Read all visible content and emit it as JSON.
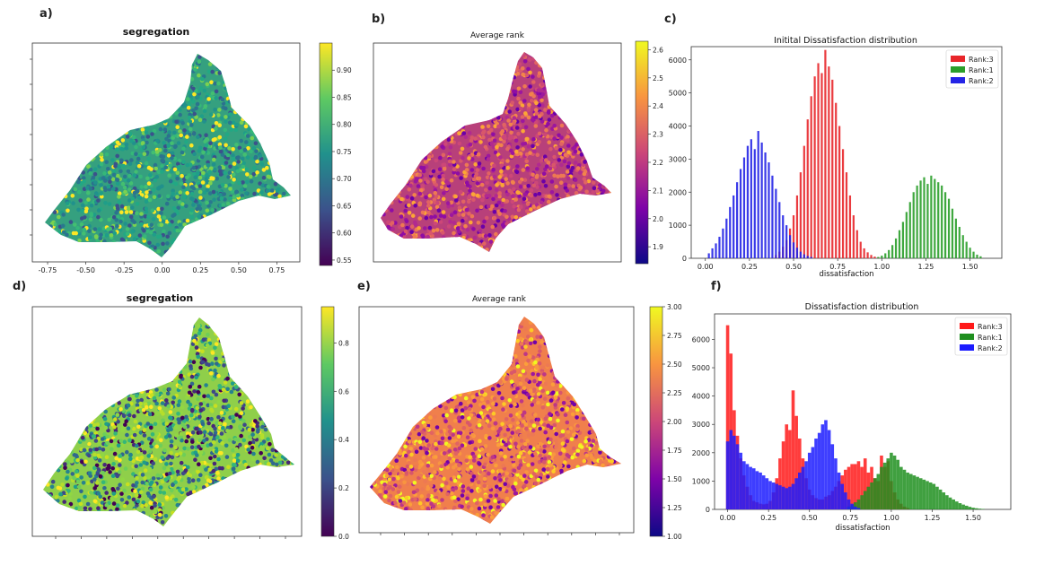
{
  "panels": {
    "a": {
      "letter": "a)",
      "title": "segregation"
    },
    "b": {
      "letter": "b)",
      "title": "Average rank"
    },
    "c": {
      "letter": "c)",
      "title": "Initital Dissatisfaction distribution"
    },
    "d": {
      "letter": "d)",
      "title": "segregation"
    },
    "e": {
      "letter": "e)",
      "title": "Average rank"
    },
    "f": {
      "letter": "f)",
      "title": "Dissatisfaction distribution"
    }
  },
  "chart_data": [
    {
      "id": "a",
      "type": "heatmap",
      "title": "segregation",
      "xlabel": "",
      "ylabel": "",
      "xticks": [
        "-0.75",
        "-0.50",
        "-0.25",
        "0.00",
        "0.25",
        "0.50",
        "0.75"
      ],
      "xlim": [
        -0.85,
        0.9
      ],
      "colormap": "viridis",
      "colorbar": {
        "min": 0.54,
        "max": 0.95,
        "ticks": [
          "0.55",
          "0.60",
          "0.65",
          "0.70",
          "0.75",
          "0.80",
          "0.85",
          "0.90"
        ]
      }
    },
    {
      "id": "b",
      "type": "heatmap",
      "title": "Average rank",
      "xlabel": "",
      "ylabel": "",
      "colormap": "plasma",
      "colorbar": {
        "min": 1.84,
        "max": 2.63,
        "ticks": [
          "1.9",
          "2.0",
          "2.1",
          "2.2",
          "2.3",
          "2.4",
          "2.5",
          "2.6"
        ]
      }
    },
    {
      "id": "c",
      "type": "bar",
      "title": "Initital Dissatisfaction distribution",
      "xlabel": "dissatisfaction",
      "ylabel": "",
      "xlim": [
        -0.08,
        1.68
      ],
      "ylim": [
        0,
        6400
      ],
      "xticks": [
        "0.00",
        "0.25",
        "0.50",
        "0.75",
        "1.00",
        "1.25",
        "1.50"
      ],
      "yticks": [
        "0",
        "1000",
        "2000",
        "3000",
        "4000",
        "5000",
        "6000"
      ],
      "legend": "top-right",
      "series": [
        {
          "name": "Rank:3",
          "color": "#e8262a",
          "x": [
            0.4,
            0.42,
            0.44,
            0.46,
            0.48,
            0.5,
            0.52,
            0.54,
            0.56,
            0.58,
            0.6,
            0.62,
            0.64,
            0.66,
            0.68,
            0.7,
            0.72,
            0.74,
            0.76,
            0.78,
            0.8,
            0.82,
            0.84,
            0.86,
            0.88,
            0.9,
            0.92,
            0.94,
            0.96,
            0.98
          ],
          "values": [
            100,
            200,
            350,
            550,
            900,
            1300,
            1900,
            2600,
            3400,
            4200,
            4900,
            5500,
            5900,
            5600,
            6300,
            5800,
            5400,
            4700,
            4000,
            3300,
            2600,
            1900,
            1300,
            850,
            500,
            300,
            180,
            100,
            50,
            25
          ]
        },
        {
          "name": "Rank:1",
          "color": "#2a9e2a",
          "x": [
            0.98,
            1.0,
            1.02,
            1.04,
            1.06,
            1.08,
            1.1,
            1.12,
            1.14,
            1.16,
            1.18,
            1.2,
            1.22,
            1.24,
            1.26,
            1.28,
            1.3,
            1.32,
            1.34,
            1.36,
            1.38,
            1.4,
            1.42,
            1.44,
            1.46,
            1.48,
            1.5,
            1.52,
            1.54,
            1.56
          ],
          "values": [
            40,
            80,
            150,
            250,
            400,
            600,
            850,
            1100,
            1400,
            1700,
            2000,
            2200,
            2350,
            2450,
            2250,
            2500,
            2400,
            2300,
            2200,
            2000,
            1800,
            1500,
            1200,
            950,
            700,
            500,
            320,
            200,
            110,
            60
          ]
        },
        {
          "name": "Rank:2",
          "color": "#2424e6",
          "x": [
            0.02,
            0.04,
            0.06,
            0.08,
            0.1,
            0.12,
            0.14,
            0.16,
            0.18,
            0.2,
            0.22,
            0.24,
            0.26,
            0.28,
            0.3,
            0.32,
            0.34,
            0.36,
            0.38,
            0.4,
            0.42,
            0.44,
            0.46,
            0.48,
            0.5,
            0.52,
            0.54,
            0.56,
            0.58,
            0.6
          ],
          "values": [
            150,
            300,
            450,
            650,
            900,
            1200,
            1550,
            1900,
            2300,
            2700,
            3050,
            3400,
            3600,
            3300,
            3850,
            3500,
            3200,
            2900,
            2500,
            2100,
            1700,
            1300,
            1000,
            700,
            480,
            320,
            200,
            120,
            70,
            40
          ]
        }
      ]
    },
    {
      "id": "d",
      "type": "heatmap",
      "title": "segregation",
      "xlabel": "",
      "ylabel": "",
      "colormap": "viridis",
      "colorbar": {
        "min": 0.0,
        "max": 0.95,
        "ticks": [
          "0.0",
          "0.2",
          "0.4",
          "0.6",
          "0.8"
        ]
      }
    },
    {
      "id": "e",
      "type": "heatmap",
      "title": "Average rank",
      "xlabel": "",
      "ylabel": "",
      "colormap": "plasma",
      "colorbar": {
        "min": 1.0,
        "max": 3.0,
        "ticks": [
          "1.00",
          "1.25",
          "1.50",
          "1.75",
          "2.00",
          "2.25",
          "2.50",
          "2.75",
          "3.00"
        ]
      }
    },
    {
      "id": "f",
      "type": "bar",
      "title": "Dissatisfaction distribution",
      "xlabel": "dissatisfaction",
      "ylabel": "",
      "xlim": [
        -0.08,
        1.73
      ],
      "ylim": [
        0,
        6900
      ],
      "xticks": [
        "0.00",
        "0.25",
        "0.50",
        "0.75",
        "1.00",
        "1.25",
        "1.50"
      ],
      "yticks": [
        "0",
        "1000",
        "2000",
        "3000",
        "4000",
        "5000",
        "6000"
      ],
      "legend": "top-right",
      "series": [
        {
          "name": "Rank:3",
          "color": "#ff1a1a",
          "x": [
            0.0,
            0.02,
            0.04,
            0.06,
            0.08,
            0.1,
            0.12,
            0.14,
            0.16,
            0.18,
            0.2,
            0.22,
            0.24,
            0.26,
            0.28,
            0.3,
            0.32,
            0.34,
            0.36,
            0.38,
            0.4,
            0.42,
            0.44,
            0.46,
            0.48,
            0.5,
            0.52,
            0.54,
            0.56,
            0.58,
            0.6,
            0.62,
            0.64,
            0.66,
            0.68,
            0.7,
            0.72,
            0.74,
            0.76,
            0.78,
            0.8,
            0.82,
            0.84,
            0.86,
            0.88,
            0.9,
            0.92,
            0.94,
            0.96,
            0.98,
            1.0,
            1.02,
            1.04,
            1.06,
            1.08,
            1.1
          ],
          "values": [
            6500,
            5500,
            3500,
            2600,
            1800,
            1200,
            800,
            500,
            300,
            250,
            200,
            180,
            200,
            300,
            600,
            1100,
            1800,
            2400,
            3000,
            2800,
            4200,
            3300,
            2500,
            1800,
            1100,
            700,
            500,
            400,
            350,
            350,
            450,
            500,
            650,
            800,
            1000,
            1200,
            1400,
            1500,
            1600,
            1600,
            1700,
            1500,
            1800,
            1300,
            1500,
            1100,
            1000,
            1900,
            1500,
            1700,
            1000,
            600,
            350,
            200,
            100,
            50
          ]
        },
        {
          "name": "Rank:1",
          "color": "#1f8f1f",
          "x": [
            0.74,
            0.76,
            0.78,
            0.8,
            0.82,
            0.84,
            0.86,
            0.88,
            0.9,
            0.92,
            0.94,
            0.96,
            0.98,
            1.0,
            1.02,
            1.04,
            1.06,
            1.08,
            1.1,
            1.12,
            1.14,
            1.16,
            1.18,
            1.2,
            1.22,
            1.24,
            1.26,
            1.28,
            1.3,
            1.32,
            1.34,
            1.36,
            1.38,
            1.4,
            1.42,
            1.44,
            1.46,
            1.48,
            1.5,
            1.52,
            1.54,
            1.56
          ],
          "values": [
            100,
            150,
            250,
            350,
            500,
            650,
            800,
            950,
            1100,
            1250,
            1500,
            1650,
            1800,
            2000,
            1900,
            1750,
            1500,
            1400,
            1300,
            1250,
            1200,
            1150,
            1100,
            1050,
            1000,
            950,
            900,
            800,
            700,
            600,
            500,
            420,
            350,
            280,
            220,
            170,
            130,
            90,
            60,
            40,
            25,
            15
          ]
        },
        {
          "name": "Rank:2",
          "color": "#1c1cff",
          "x": [
            0.0,
            0.02,
            0.04,
            0.06,
            0.08,
            0.1,
            0.12,
            0.14,
            0.16,
            0.18,
            0.2,
            0.22,
            0.24,
            0.26,
            0.28,
            0.3,
            0.32,
            0.34,
            0.36,
            0.38,
            0.4,
            0.42,
            0.44,
            0.46,
            0.48,
            0.5,
            0.52,
            0.54,
            0.56,
            0.58,
            0.6,
            0.62,
            0.64,
            0.66,
            0.68,
            0.7,
            0.72,
            0.74,
            0.76,
            0.78,
            0.8
          ],
          "values": [
            2400,
            2800,
            2600,
            2300,
            2000,
            1700,
            1600,
            1500,
            1450,
            1350,
            1300,
            1200,
            1100,
            1000,
            950,
            900,
            850,
            800,
            750,
            800,
            900,
            1100,
            1300,
            1500,
            1700,
            2000,
            2200,
            2500,
            2700,
            3000,
            3150,
            2800,
            2300,
            1800,
            1300,
            900,
            600,
            350,
            200,
            100,
            50
          ]
        }
      ]
    }
  ]
}
